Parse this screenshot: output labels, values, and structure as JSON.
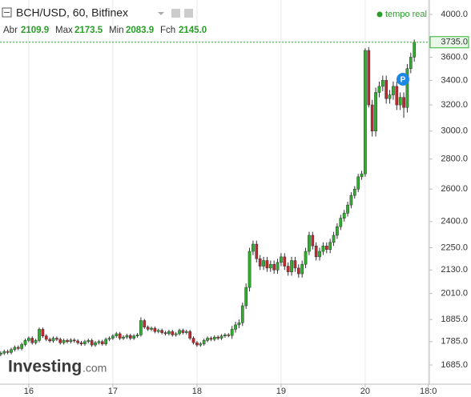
{
  "header": {
    "symbol": "BCH/USD, 60, Bitfinex",
    "labels": [
      "Abr",
      "Max",
      "Min",
      "Fch"
    ],
    "values": [
      "2109.9",
      "2173.5",
      "2083.9",
      "2145.0"
    ],
    "status": "tempo real"
  },
  "watermark": {
    "brand": "Investing",
    "suffix": ".com"
  },
  "marker_label": "P",
  "chart_data": {
    "type": "candlestick",
    "log_scale": true,
    "grid": "x",
    "up_color": "#2db12d",
    "down_color": "#c0282d",
    "xlim": [
      -8.2,
      114.3
    ],
    "ylim": [
      1607,
      4145
    ],
    "xticks": [
      {
        "value": 0,
        "label": "16"
      },
      {
        "value": 24,
        "label": "17"
      },
      {
        "value": 48,
        "label": "18"
      },
      {
        "value": 72,
        "label": "19"
      },
      {
        "value": 96,
        "label": "20"
      },
      {
        "value": 114,
        "label": "18:0"
      }
    ],
    "yticks": [
      {
        "value": 1685,
        "label": "1685.0"
      },
      {
        "value": 1785,
        "label": "1785.0"
      },
      {
        "value": 1885,
        "label": "1885.0"
      },
      {
        "value": 2010,
        "label": "2010.0"
      },
      {
        "value": 2130,
        "label": "2130.0"
      },
      {
        "value": 2250,
        "label": "2250.0"
      },
      {
        "value": 2400,
        "label": "2400.0"
      },
      {
        "value": 2600,
        "label": "2600.0"
      },
      {
        "value": 2800,
        "label": "2800.0"
      },
      {
        "value": 3000,
        "label": "3000.0"
      },
      {
        "value": 3200,
        "label": "3200.0"
      },
      {
        "value": 3400,
        "label": "3400.0"
      },
      {
        "value": 3600,
        "label": "3600.0"
      },
      {
        "value": 4000,
        "label": "4000.0"
      }
    ],
    "last_price": {
      "value": 3735,
      "label": "3735.0"
    },
    "x": [
      -8,
      -7,
      -6,
      -5,
      -4,
      -3,
      -2,
      -1,
      0,
      1,
      2,
      3,
      4,
      5,
      6,
      7,
      8,
      9,
      10,
      11,
      12,
      13,
      14,
      15,
      16,
      17,
      18,
      19,
      20,
      21,
      22,
      23,
      24,
      25,
      26,
      27,
      28,
      29,
      30,
      31,
      32,
      33,
      34,
      35,
      36,
      37,
      38,
      39,
      40,
      41,
      42,
      43,
      44,
      45,
      46,
      47,
      48,
      49,
      50,
      51,
      52,
      53,
      54,
      55,
      56,
      57,
      58,
      59,
      60,
      61,
      62,
      63,
      64,
      65,
      66,
      67,
      68,
      69,
      70,
      71,
      72,
      73,
      74,
      75,
      76,
      77,
      78,
      79,
      80,
      81,
      82,
      83,
      84,
      85,
      86,
      87,
      88,
      89,
      90,
      91,
      92,
      93,
      94,
      95,
      96,
      97,
      98,
      99,
      100,
      101,
      102,
      103,
      104,
      105,
      106,
      107,
      108,
      109,
      110
    ],
    "open": [
      1730,
      1735,
      1742,
      1738,
      1750,
      1760,
      1755,
      1772,
      1790,
      1800,
      1780,
      1790,
      1840,
      1810,
      1795,
      1788,
      1800,
      1795,
      1780,
      1790,
      1785,
      1792,
      1788,
      1780,
      1775,
      1785,
      1790,
      1770,
      1780,
      1785,
      1775,
      1795,
      1800,
      1810,
      1820,
      1800,
      1805,
      1812,
      1800,
      1810,
      1815,
      1880,
      1850,
      1840,
      1845,
      1830,
      1835,
      1825,
      1820,
      1830,
      1815,
      1820,
      1835,
      1825,
      1830,
      1800,
      1780,
      1770,
      1775,
      1790,
      1800,
      1795,
      1805,
      1800,
      1810,
      1815,
      1812,
      1840,
      1860,
      1870,
      1950,
      2040,
      2230,
      2270,
      2190,
      2150,
      2180,
      2140,
      2160,
      2130,
      2170,
      2200,
      2150,
      2120,
      2180,
      2140,
      2110,
      2160,
      2230,
      2320,
      2260,
      2200,
      2230,
      2260,
      2240,
      2280,
      2320,
      2370,
      2420,
      2450,
      2500,
      2560,
      2600,
      2680,
      2700,
      3660,
      3200,
      3000,
      3300,
      3350,
      3400,
      3250,
      3280,
      3350,
      3200,
      3260,
      3180,
      3500,
      3600
    ],
    "high": [
      1743,
      1750,
      1750,
      1758,
      1768,
      1768,
      1780,
      1798,
      1808,
      1808,
      1798,
      1848,
      1848,
      1818,
      1803,
      1808,
      1808,
      1803,
      1798,
      1798,
      1800,
      1800,
      1796,
      1788,
      1793,
      1798,
      1798,
      1788,
      1793,
      1793,
      1803,
      1808,
      1818,
      1828,
      1828,
      1813,
      1820,
      1820,
      1818,
      1823,
      1895,
      1888,
      1858,
      1853,
      1853,
      1843,
      1843,
      1833,
      1838,
      1838,
      1828,
      1843,
      1843,
      1838,
      1838,
      1808,
      1788,
      1783,
      1798,
      1808,
      1808,
      1813,
      1813,
      1818,
      1823,
      1823,
      1855,
      1875,
      1885,
      1965,
      2060,
      2250,
      2290,
      2290,
      2210,
      2200,
      2200,
      2180,
      2180,
      2190,
      2220,
      2220,
      2170,
      2200,
      2200,
      2160,
      2180,
      2250,
      2340,
      2340,
      2280,
      2250,
      2280,
      2280,
      2300,
      2340,
      2390,
      2440,
      2470,
      2520,
      2580,
      2620,
      2700,
      2720,
      3680,
      3690,
      3240,
      3340,
      3390,
      3440,
      3440,
      3320,
      3390,
      3390,
      3300,
      3300,
      3540,
      3640,
      3760
    ],
    "low": [
      1722,
      1727,
      1730,
      1730,
      1742,
      1747,
      1747,
      1764,
      1782,
      1772,
      1772,
      1782,
      1802,
      1787,
      1780,
      1780,
      1787,
      1772,
      1772,
      1777,
      1777,
      1780,
      1772,
      1767,
      1767,
      1777,
      1762,
      1762,
      1772,
      1767,
      1767,
      1787,
      1792,
      1802,
      1792,
      1792,
      1797,
      1792,
      1792,
      1802,
      1807,
      1842,
      1832,
      1832,
      1822,
      1822,
      1817,
      1812,
      1812,
      1807,
      1807,
      1812,
      1817,
      1817,
      1792,
      1772,
      1762,
      1762,
      1767,
      1782,
      1787,
      1787,
      1792,
      1792,
      1802,
      1804,
      1797,
      1825,
      1845,
      1855,
      1935,
      2020,
      2210,
      2170,
      2130,
      2130,
      2120,
      2120,
      2110,
      2110,
      2150,
      2130,
      2100,
      2100,
      2120,
      2090,
      2090,
      2140,
      2210,
      2240,
      2180,
      2180,
      2210,
      2220,
      2220,
      2260,
      2300,
      2350,
      2400,
      2430,
      2480,
      2540,
      2580,
      2660,
      2680,
      3180,
      2960,
      2960,
      3260,
      3310,
      3210,
      3210,
      3240,
      3160,
      3160,
      3100,
      3140,
      3460,
      3560
    ],
    "close": [
      1735,
      1742,
      1738,
      1750,
      1760,
      1755,
      1772,
      1790,
      1800,
      1780,
      1790,
      1840,
      1810,
      1795,
      1788,
      1800,
      1795,
      1780,
      1790,
      1785,
      1792,
      1788,
      1780,
      1775,
      1785,
      1790,
      1770,
      1780,
      1785,
      1775,
      1795,
      1800,
      1810,
      1820,
      1800,
      1805,
      1812,
      1800,
      1810,
      1815,
      1880,
      1850,
      1840,
      1845,
      1830,
      1835,
      1825,
      1820,
      1830,
      1815,
      1820,
      1835,
      1825,
      1830,
      1800,
      1780,
      1770,
      1775,
      1790,
      1800,
      1795,
      1805,
      1800,
      1810,
      1815,
      1812,
      1840,
      1860,
      1870,
      1950,
      2040,
      2230,
      2270,
      2190,
      2150,
      2180,
      2140,
      2160,
      2130,
      2170,
      2200,
      2150,
      2120,
      2180,
      2140,
      2110,
      2160,
      2230,
      2320,
      2260,
      2200,
      2230,
      2260,
      2240,
      2280,
      2320,
      2370,
      2420,
      2450,
      2500,
      2560,
      2600,
      2680,
      2700,
      3660,
      3200,
      3000,
      3300,
      3350,
      3400,
      3250,
      3280,
      3350,
      3200,
      3260,
      3180,
      3500,
      3600,
      3735
    ]
  }
}
